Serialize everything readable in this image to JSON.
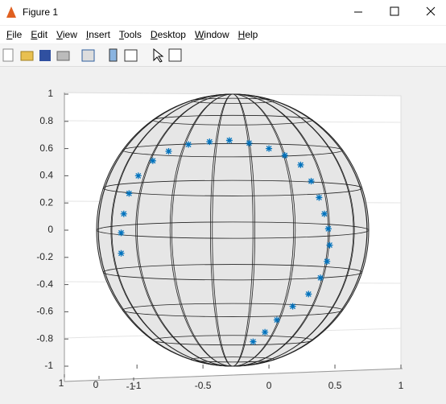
{
  "window": {
    "title": "Figure 1"
  },
  "menu": [
    "File",
    "Edit",
    "View",
    "Insert",
    "Tools",
    "Desktop",
    "Window",
    "Help"
  ],
  "chart_data": {
    "type": "scatter",
    "color": "#0072bd",
    "x": [
      -1.12,
      -1.12,
      -1.1,
      -1.06,
      -0.99,
      -0.88,
      -0.76,
      -0.61,
      -0.45,
      -0.3,
      -0.15,
      0,
      0.12,
      0.24,
      0.32,
      0.38,
      0.42,
      0.45,
      0.46,
      0.44,
      0.39,
      0.3,
      0.18,
      0.06,
      -0.03,
      -0.12
    ],
    "y": [
      -0.17,
      -0.02,
      0.12,
      0.27,
      0.4,
      0.51,
      0.58,
      0.63,
      0.65,
      0.66,
      0.64,
      0.6,
      0.55,
      0.48,
      0.36,
      0.24,
      0.12,
      0.01,
      -0.11,
      -0.23,
      -0.35,
      -0.47,
      -0.56,
      -0.66,
      -0.75,
      -0.82
    ],
    "xlim": [
      -1.55,
      1
    ],
    "ylim": [
      -1,
      1
    ],
    "xticks": [
      -1,
      -0.5,
      0,
      0.5,
      1
    ],
    "yticks": [
      1,
      0.8,
      0.6,
      0.4,
      0.2,
      0,
      -0.2,
      -0.4,
      -0.6,
      -0.8,
      -1
    ],
    "zticks": [
      1,
      0,
      -1
    ]
  }
}
